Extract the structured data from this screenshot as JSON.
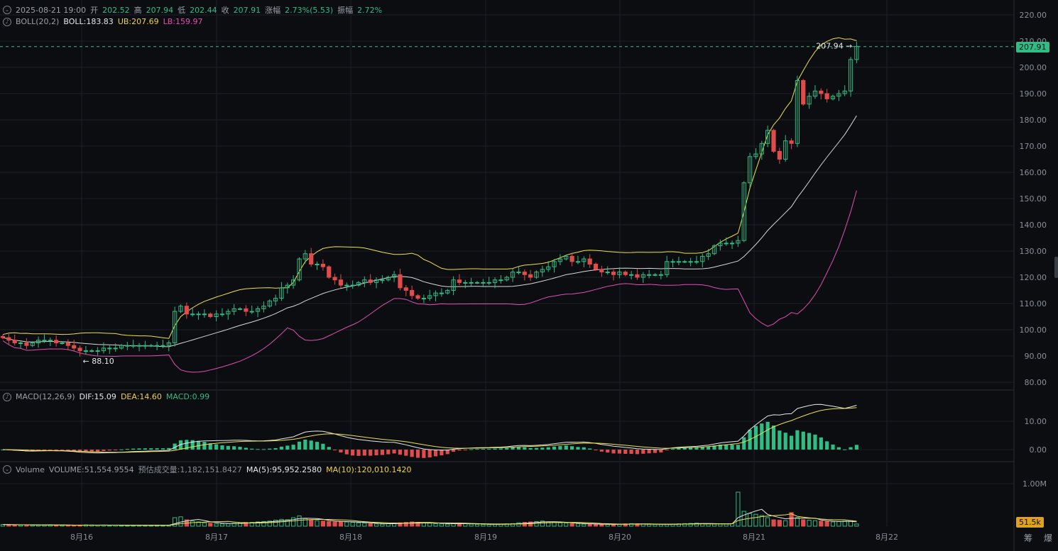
{
  "header": {
    "datetime": "2025-08-21 19:00",
    "open_label": "开",
    "open": "202.52",
    "high_label": "高",
    "high": "207.94",
    "low_label": "低",
    "low": "202.44",
    "close_label": "收",
    "close": "207.91",
    "change_label": "涨幅",
    "change": "2.73%(5.53)",
    "amplitude_label": "振幅",
    "amplitude": "2.72%"
  },
  "boll": {
    "label": "BOLL(20,2)",
    "mid": "BOLL:183.83",
    "ub": "UB:207.69",
    "lb": "LB:159.97"
  },
  "macd": {
    "label": "MACD(12,26,9)",
    "dif": "DIF:15.09",
    "dea": "DEA:14.60",
    "macd": "MACD:0.99"
  },
  "volume": {
    "label": "Volume",
    "vol": "VOLUME:51,554.9554",
    "est": "预估成交量:1,182,151.8427",
    "ma5": "MA(5):95,952.2580",
    "ma10": "MA(10):120,010.1420",
    "current_tag": "51.5k"
  },
  "price_tags": {
    "last": "207.91",
    "high_marker": "207.94",
    "low_marker": "88.10"
  },
  "buttons": {
    "left": "筹",
    "right": "爆"
  },
  "colors": {
    "up": "#2ebd85",
    "down": "#e04b4b",
    "mid": "#d8d8d8",
    "upper": "#f0e24a",
    "lower": "#e14fb4",
    "bg": "#0b0d10",
    "grid": "#1c2026"
  },
  "chart_data": {
    "type": "candlestick",
    "x_labels": [
      "8月16",
      "8月17",
      "8月18",
      "8月19",
      "8月20",
      "8月21",
      "8月22"
    ],
    "y_ticks": [
      "220.00",
      "210.00",
      "200.00",
      "190.00",
      "180.00",
      "170.00",
      "160.00",
      "150.00",
      "140.00",
      "130.00",
      "120.00",
      "110.00",
      "100.00",
      "90.00",
      "80.00"
    ],
    "macd_ticks": [
      "10.00",
      "0.00"
    ],
    "volume_ticks": [
      "1.00M"
    ],
    "ylim": [
      76,
      224
    ],
    "close": [
      97,
      96,
      95,
      95,
      94,
      95,
      96,
      96,
      96,
      95,
      95,
      94,
      93,
      92,
      92,
      92,
      92,
      93,
      93,
      93,
      94,
      94,
      94,
      94,
      94,
      94,
      94,
      94,
      95,
      107,
      109,
      106,
      106,
      106,
      106,
      105,
      106,
      106,
      107,
      108,
      108,
      107,
      107,
      108,
      109,
      111,
      112,
      116,
      117,
      119,
      127,
      129,
      125,
      125,
      124,
      120,
      119,
      117,
      117,
      117,
      118,
      119,
      118,
      119,
      119,
      120,
      121,
      116,
      115,
      113,
      112,
      112,
      113,
      114,
      114,
      115,
      119,
      118,
      118,
      118,
      118,
      118,
      118,
      119,
      119,
      120,
      122,
      122,
      121,
      120,
      122,
      123,
      124,
      126,
      127,
      128,
      126,
      126,
      127,
      125,
      123,
      122,
      122,
      121,
      122,
      121,
      121,
      120,
      121,
      121,
      121,
      121,
      126,
      126,
      126,
      126,
      126,
      126,
      128,
      129,
      132,
      133,
      133,
      133,
      134,
      156,
      166,
      167,
      171,
      176,
      168,
      165,
      172,
      171,
      195,
      186,
      189,
      191,
      190,
      188,
      189,
      190,
      191,
      203,
      208
    ],
    "volume_k": [
      40,
      35,
      30,
      28,
      30,
      25,
      25,
      28,
      30,
      25,
      22,
      25,
      20,
      25,
      30,
      28,
      25,
      25,
      20,
      25,
      20,
      20,
      22,
      25,
      20,
      22,
      25,
      20,
      25,
      200,
      220,
      150,
      120,
      100,
      80,
      70,
      60,
      55,
      60,
      70,
      80,
      90,
      90,
      100,
      110,
      120,
      140,
      160,
      150,
      200,
      240,
      180,
      150,
      130,
      120,
      110,
      100,
      110,
      100,
      90,
      80,
      70,
      60,
      55,
      50,
      60,
      70,
      80,
      90,
      100,
      90,
      80,
      70,
      60,
      55,
      50,
      60,
      70,
      60,
      50,
      45,
      40,
      40,
      45,
      50,
      55,
      60,
      80,
      90,
      100,
      110,
      120,
      100,
      90,
      80,
      70,
      60,
      55,
      50,
      50,
      45,
      40,
      40,
      45,
      50,
      55,
      60,
      55,
      50,
      45,
      40,
      40,
      45,
      50,
      55,
      60,
      65,
      70,
      60,
      55,
      50,
      50,
      50,
      60,
      800,
      350,
      300,
      280,
      250,
      200,
      150,
      140,
      130,
      320,
      200,
      150,
      140,
      130,
      120,
      110,
      100,
      110,
      120,
      130,
      52
    ]
  }
}
